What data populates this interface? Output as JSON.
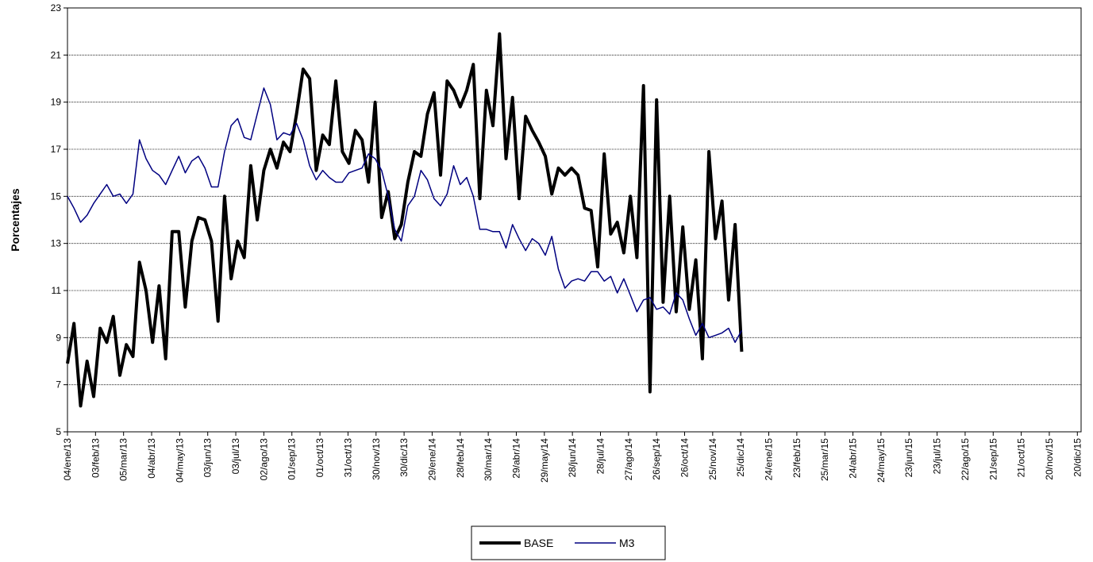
{
  "chart_data": {
    "type": "line",
    "y_label": "Porcentajes",
    "x": [
      0,
      7,
      14,
      21,
      28,
      35,
      42,
      49,
      56,
      63,
      70,
      77,
      84,
      91,
      98,
      105,
      112,
      119,
      126,
      133,
      140,
      147,
      154,
      161,
      168,
      175,
      182,
      189,
      196,
      203,
      210,
      217,
      224,
      231,
      238,
      245,
      252,
      259,
      266,
      273,
      280,
      287,
      294,
      301,
      308,
      315,
      322,
      329,
      336,
      343,
      350,
      357,
      364,
      371,
      378,
      385,
      392,
      399,
      406,
      413,
      420,
      427,
      434,
      441,
      448,
      455,
      462,
      469,
      476,
      483,
      490,
      497,
      504,
      511,
      518,
      525,
      532,
      539,
      546,
      553,
      560,
      567,
      574,
      581,
      588,
      595,
      602,
      609,
      616,
      623,
      630,
      637,
      644,
      651,
      658,
      665,
      672,
      679,
      686,
      693,
      700,
      707,
      714,
      721
    ],
    "xlim": [
      0,
      1084
    ],
    "xticks": [
      {
        "value": 0,
        "label": "04/ene/13"
      },
      {
        "value": 30,
        "label": "03/feb/13"
      },
      {
        "value": 60,
        "label": "05/mar/13"
      },
      {
        "value": 90,
        "label": "04/abr/13"
      },
      {
        "value": 120,
        "label": "04/may/13"
      },
      {
        "value": 150,
        "label": "03/jun/13"
      },
      {
        "value": 180,
        "label": "03/jul/13"
      },
      {
        "value": 210,
        "label": "02/ago/13"
      },
      {
        "value": 240,
        "label": "01/sep/13"
      },
      {
        "value": 270,
        "label": "01/oct/13"
      },
      {
        "value": 300,
        "label": "31/oct/13"
      },
      {
        "value": 330,
        "label": "30/nov/13"
      },
      {
        "value": 360,
        "label": "30/dic/13"
      },
      {
        "value": 390,
        "label": "29/ene/14"
      },
      {
        "value": 420,
        "label": "28/feb/14"
      },
      {
        "value": 450,
        "label": "30/mar/14"
      },
      {
        "value": 480,
        "label": "29/abr/14"
      },
      {
        "value": 510,
        "label": "29/may/14"
      },
      {
        "value": 540,
        "label": "28/jun/14"
      },
      {
        "value": 570,
        "label": "28/jul/14"
      },
      {
        "value": 600,
        "label": "27/ago/14"
      },
      {
        "value": 630,
        "label": "26/sep/14"
      },
      {
        "value": 660,
        "label": "26/oct/14"
      },
      {
        "value": 690,
        "label": "25/nov/14"
      },
      {
        "value": 720,
        "label": "25/dic/14"
      },
      {
        "value": 750,
        "label": "24/ene/15"
      },
      {
        "value": 780,
        "label": "23/feb/15"
      },
      {
        "value": 810,
        "label": "25/mar/15"
      },
      {
        "value": 840,
        "label": "24/abr/15"
      },
      {
        "value": 870,
        "label": "24/may/15"
      },
      {
        "value": 900,
        "label": "23/jun/15"
      },
      {
        "value": 930,
        "label": "23/jul/15"
      },
      {
        "value": 960,
        "label": "22/ago/15"
      },
      {
        "value": 990,
        "label": "21/sep/15"
      },
      {
        "value": 1020,
        "label": "21/oct/15"
      },
      {
        "value": 1050,
        "label": "20/nov/15"
      },
      {
        "value": 1080,
        "label": "20/dic/15"
      }
    ],
    "ylim": [
      5,
      23
    ],
    "yticks": [
      5,
      7,
      9,
      11,
      13,
      15,
      17,
      19,
      21,
      23
    ],
    "grid": true,
    "legend": "bottom",
    "series": [
      {
        "name": "BASE",
        "color": "#000000",
        "width": 4,
        "values": [
          7.9,
          9.6,
          6.1,
          8.0,
          6.5,
          9.4,
          8.8,
          9.9,
          7.4,
          8.7,
          8.2,
          12.2,
          11.0,
          8.8,
          11.2,
          8.1,
          13.5,
          13.5,
          10.3,
          13.1,
          14.1,
          14.0,
          13.1,
          9.7,
          15.0,
          11.5,
          13.1,
          12.4,
          16.3,
          14.0,
          16.1,
          17.0,
          16.2,
          17.3,
          16.9,
          18.5,
          20.4,
          20.0,
          16.1,
          17.6,
          17.2,
          19.9,
          16.9,
          16.4,
          17.8,
          17.4,
          15.6,
          19.0,
          14.1,
          15.2,
          13.2,
          13.8,
          15.6,
          16.9,
          16.7,
          18.5,
          19.4,
          15.9,
          19.9,
          19.5,
          18.8,
          19.5,
          20.6,
          14.9,
          19.5,
          18.0,
          21.9,
          16.6,
          19.2,
          14.9,
          18.4,
          17.8,
          17.3,
          16.7,
          15.1,
          16.2,
          15.9,
          16.2,
          15.9,
          14.5,
          14.4,
          12.0,
          16.8,
          13.4,
          13.9,
          12.6,
          15.0,
          12.4,
          19.7,
          6.7,
          19.1,
          10.5,
          15.0,
          10.1,
          13.7,
          10.2,
          12.3,
          8.1,
          16.9,
          13.2,
          14.8,
          10.6,
          13.8,
          8.4
        ]
      },
      {
        "name": "M3",
        "color": "#000080",
        "width": 1.5,
        "values": [
          15.0,
          14.5,
          13.9,
          14.2,
          14.7,
          15.1,
          15.5,
          15.0,
          15.1,
          14.7,
          15.1,
          17.4,
          16.6,
          16.1,
          15.9,
          15.5,
          16.1,
          16.7,
          16.0,
          16.5,
          16.7,
          16.2,
          15.4,
          15.4,
          16.9,
          18.0,
          18.3,
          17.5,
          17.4,
          18.5,
          19.6,
          18.9,
          17.4,
          17.7,
          17.6,
          18.1,
          17.4,
          16.3,
          15.7,
          16.1,
          15.8,
          15.6,
          15.6,
          16.0,
          16.1,
          16.2,
          16.8,
          16.6,
          16.1,
          15.0,
          13.6,
          13.1,
          14.6,
          15.0,
          16.1,
          15.7,
          14.9,
          14.6,
          15.1,
          16.3,
          15.5,
          15.8,
          15.0,
          13.6,
          13.6,
          13.5,
          13.5,
          12.8,
          13.8,
          13.2,
          12.7,
          13.2,
          13.0,
          12.5,
          13.3,
          11.9,
          11.1,
          11.4,
          11.5,
          11.4,
          11.8,
          11.8,
          11.4,
          11.6,
          10.9,
          11.5,
          10.8,
          10.1,
          10.6,
          10.7,
          10.2,
          10.3,
          10.0,
          10.9,
          10.6,
          9.8,
          9.1,
          9.6,
          9.0,
          9.1,
          9.2,
          9.4,
          8.8,
          9.3
        ]
      }
    ]
  }
}
